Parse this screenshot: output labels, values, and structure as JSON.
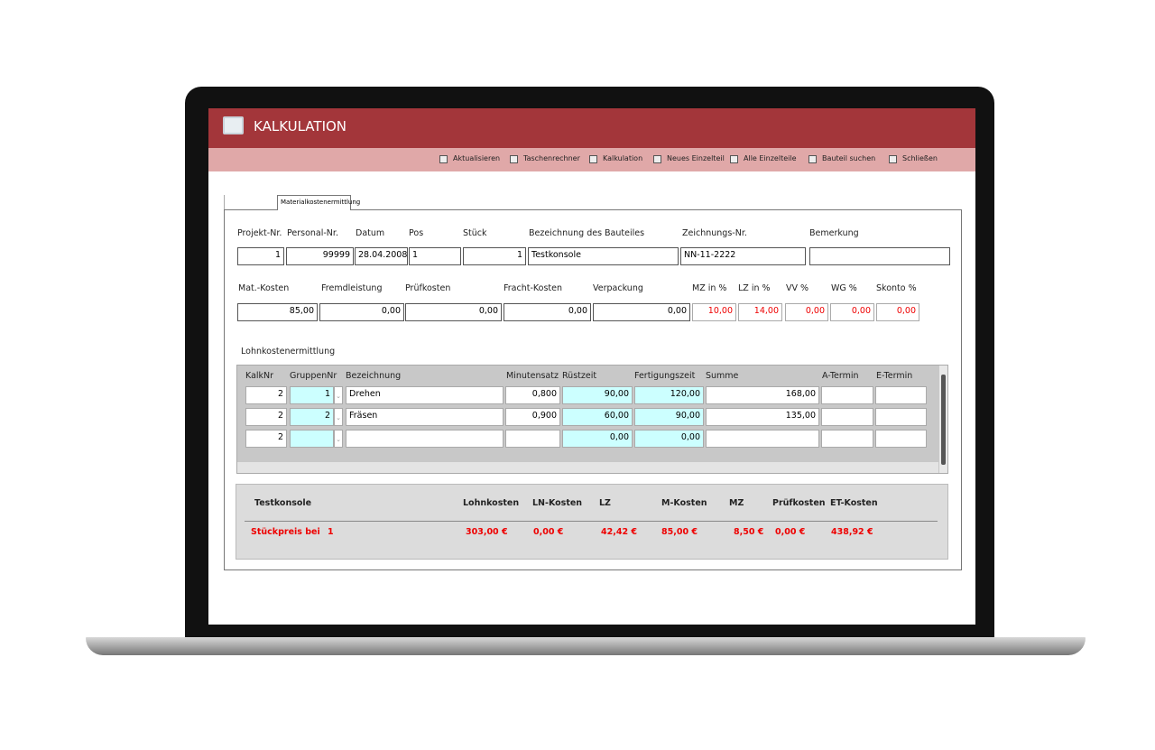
{
  "window": {
    "title": "KALKULATION"
  },
  "toolbar": [
    "Aktualisieren",
    "Taschenrechner",
    "Kalkulation",
    "Neues Einzelteil",
    "Alle Einzelteile",
    "Bauteil suchen",
    "Schließen"
  ],
  "tab": "Materialkostenermittlung",
  "header_fields": {
    "labels": [
      "Projekt-Nr.",
      "Personal-Nr.",
      "Datum",
      "Pos",
      "Stück",
      "Bezeichnung des Bauteiles",
      "Zeichnungs-Nr.",
      "Bemerkung"
    ],
    "values": [
      "1",
      "99999",
      "28.04.2008",
      "1",
      "1",
      "Testkonsole",
      "NN-11-2222",
      null
    ]
  },
  "cost_fields": {
    "labels": [
      "Mat.-Kosten",
      "Fremdleistung",
      "Prüfkosten",
      "Fracht-Kosten",
      "Verpackung",
      "MZ in %",
      "LZ in %",
      "VV %",
      "WG %",
      "Skonto %"
    ],
    "values": [
      "85,00",
      "0,00",
      "0,00",
      "0,00",
      "0,00",
      "10,00",
      "14,00",
      "0,00",
      "0,00",
      "0,00"
    ]
  },
  "labor": {
    "title": "Lohnkostenermittlung",
    "columns": [
      "KalkNr",
      "GruppenNr",
      "Bezeichnung",
      "Minutensatz",
      "Rüstzeit",
      "Fertigungszeit",
      "Summe",
      "A-Termin",
      "E-Termin"
    ],
    "rows": [
      [
        "2",
        "1",
        "Drehen",
        "0,800",
        "90,00",
        "120,00",
        "168,00",
        null,
        null
      ],
      [
        "2",
        "2",
        "Fräsen",
        "0,900",
        "60,00",
        "90,00",
        "135,00",
        null,
        null
      ],
      [
        "2",
        null,
        null,
        null,
        "0,00",
        "0,00",
        null,
        null,
        null
      ]
    ]
  },
  "summary": {
    "name": "Testkonsole",
    "columns": [
      "Lohnkosten",
      "LN-Kosten",
      "LZ",
      "M-Kosten",
      "MZ",
      "Prüfkosten",
      "ET-Kosten"
    ],
    "price_label": "Stückpreis bei",
    "quantity": "1",
    "values": [
      "303,00 €",
      "0,00 €",
      "42,42 €",
      "85,00 €",
      "8,50 €",
      "0,00 €",
      "438,92 €"
    ]
  }
}
